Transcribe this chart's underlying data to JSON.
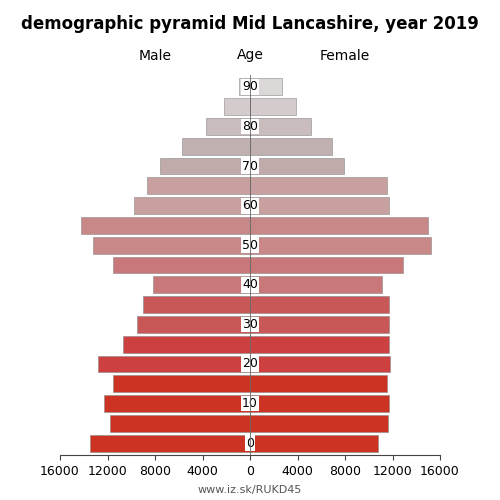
{
  "title": "demographic pyramid Mid Lancashire, year 2019",
  "male_label": "Male",
  "female_label": "Female",
  "age_label": "Age",
  "url": "www.iz.sk/RUKD45",
  "age_groups": [
    0,
    5,
    10,
    15,
    20,
    25,
    30,
    35,
    40,
    45,
    50,
    55,
    60,
    65,
    70,
    75,
    80,
    85,
    90
  ],
  "male_values": [
    13500,
    11800,
    12300,
    11500,
    12800,
    10700,
    9500,
    9000,
    8200,
    11500,
    13200,
    14200,
    9800,
    8700,
    7600,
    5700,
    3700,
    2200,
    900
  ],
  "female_values": [
    10800,
    11600,
    11700,
    11500,
    11800,
    11700,
    11700,
    11700,
    11100,
    12900,
    15200,
    15000,
    11700,
    11500,
    7900,
    6900,
    5100,
    3900,
    2700
  ],
  "xlim": 16000,
  "bar_height": 0.85,
  "colors": [
    "#cc3322",
    "#cc3322",
    "#cc3322",
    "#cc3322",
    "#cd4040",
    "#cd4040",
    "#c85858",
    "#c85858",
    "#c87878",
    "#c87878",
    "#c88888",
    "#c88888",
    "#c8a0a0",
    "#c8a0a0",
    "#c0aaaa",
    "#c0b0b0",
    "#c8bcbc",
    "#d4cccc",
    "#ddd8d8"
  ],
  "background_color": "#ffffff",
  "title_fontsize": 12,
  "label_fontsize": 10,
  "tick_fontsize": 9,
  "age_tick_fontsize": 9
}
